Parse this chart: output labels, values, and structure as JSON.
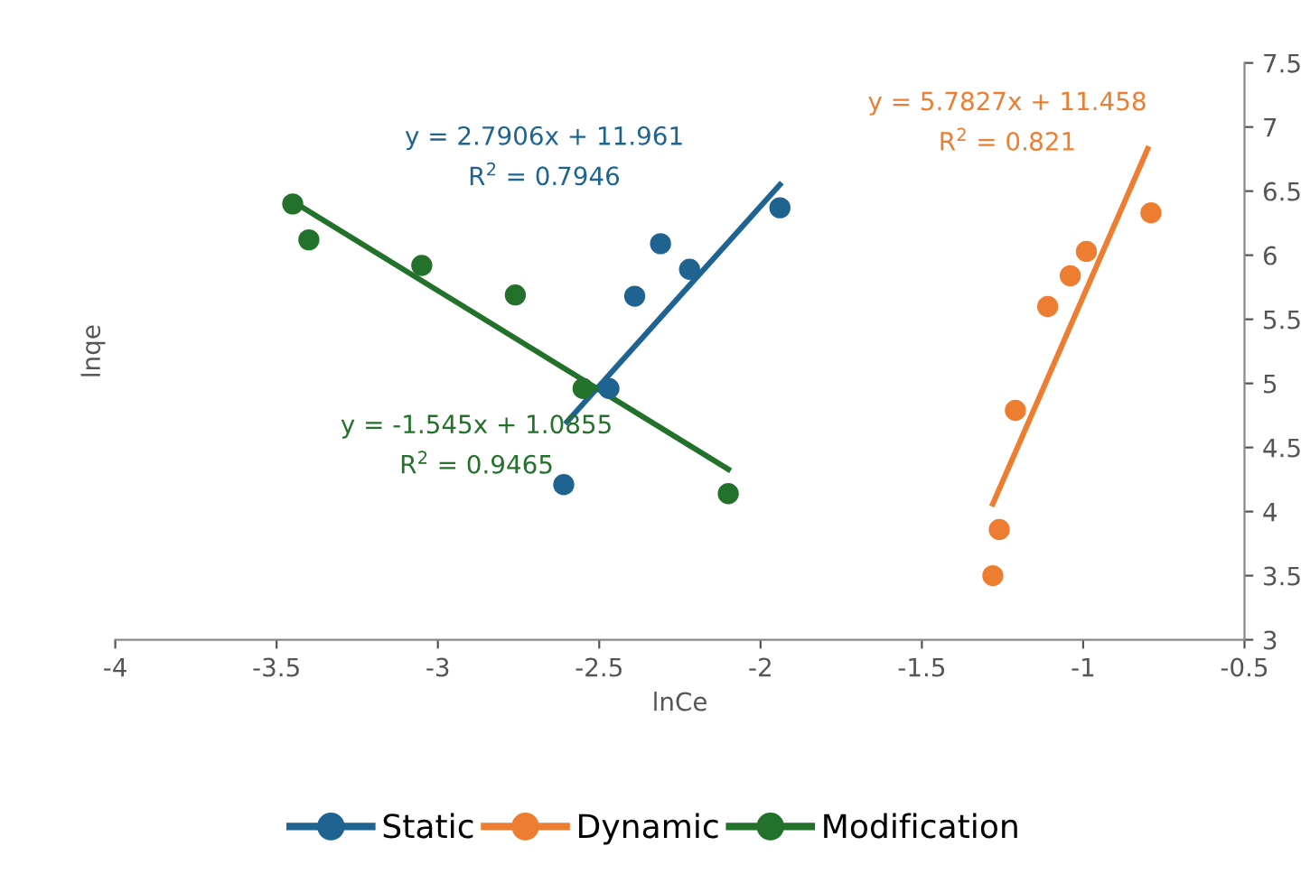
{
  "chart_data": {
    "type": "scatter",
    "xlabel": "lnCe",
    "ylabel": "lnqe",
    "xlim": [
      -4,
      -0.5
    ],
    "xticks": [
      -4,
      -3.5,
      -3,
      -2.5,
      -2,
      -1.5,
      -1,
      -0.5
    ],
    "ylim": [
      3,
      7.5
    ],
    "yticks": [
      3,
      3.5,
      4,
      4.5,
      5,
      5.5,
      6,
      6.5,
      7,
      7.5
    ],
    "grid": false,
    "legend": "bottom",
    "marker": "circle",
    "series": [
      {
        "name": "Static",
        "color": "#1f6391",
        "x": [
          -2.61,
          -2.47,
          -2.39,
          -2.31,
          -2.22,
          -1.94
        ],
        "values": [
          4.21,
          4.96,
          5.68,
          6.09,
          5.89,
          6.37
        ]
      },
      {
        "name": "Dynamic",
        "color": "#ed7d31",
        "x": [
          -1.28,
          -1.26,
          -1.21,
          -1.11,
          -1.04,
          -0.99,
          -0.79
        ],
        "values": [
          3.5,
          3.86,
          4.79,
          5.6,
          5.84,
          6.03,
          6.33
        ]
      },
      {
        "name": "Modification",
        "color": "#23712b",
        "x": [
          -3.45,
          -3.4,
          -3.05,
          -2.76,
          -2.55,
          -2.1
        ],
        "values": [
          6.4,
          6.12,
          5.92,
          5.69,
          4.96,
          4.14
        ]
      },
      {
        "type": "line",
        "marker": "none",
        "color": "#1f6391",
        "x": [
          -2.6,
          -1.94
        ],
        "values": [
          4.7,
          6.55
        ]
      },
      {
        "type": "line",
        "marker": "none",
        "color": "#ed7d31",
        "x": [
          -1.28,
          -0.8
        ],
        "values": [
          4.06,
          6.83
        ]
      },
      {
        "type": "line",
        "marker": "none",
        "color": "#23712b",
        "x": [
          -3.45,
          -2.1
        ],
        "values": [
          6.42,
          4.33
        ]
      }
    ],
    "annotations": [
      "y = 2.7906x + 11.961",
      "R$^{2}$ = 0.7946",
      "y = 5.7827x + 11.458",
      "R$^{2}$ = 0.821",
      "y = -1.545x + 1.0855",
      "R$^{2}$ = 0.9465"
    ]
  }
}
